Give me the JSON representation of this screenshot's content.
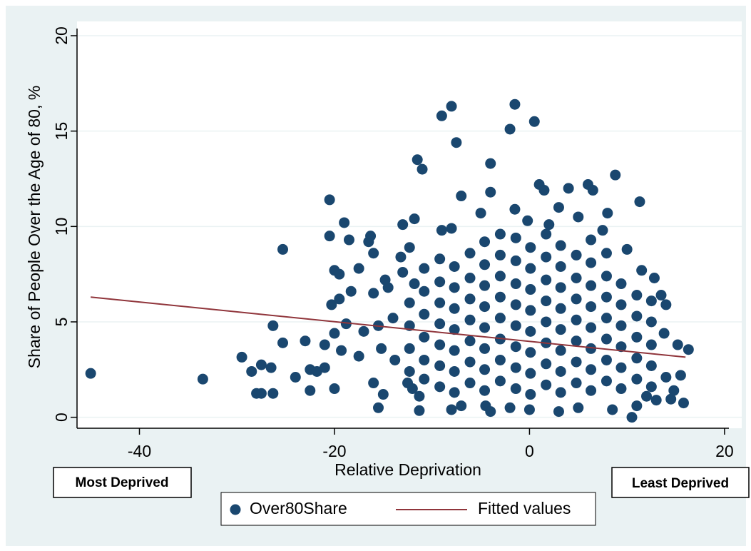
{
  "chart_data": {
    "type": "scatter",
    "x_label": "Relative Deprivation",
    "y_label": "Share of People Over the Age of 80, %",
    "annotations": [
      "Most Deprived",
      "Least Deprived"
    ],
    "xlim": [
      -46.4,
      20.3
    ],
    "xticks": [
      -40,
      -20,
      0,
      20
    ],
    "ylim": [
      -0.5,
      20
    ],
    "yticks": [
      0,
      5,
      10,
      15,
      20
    ],
    "grid": true,
    "legend": "bottom",
    "series": [
      {
        "name": "Over80Share",
        "color": "#1a476f",
        "type": "scatter",
        "x": [
          -45,
          -33.5,
          -29.5,
          -28.5,
          -28,
          -27.5,
          -27.5,
          -26.5,
          -26.3,
          -26.3,
          -25.3,
          -25.3,
          -24,
          -23,
          -22.5,
          -22.5,
          -21.8,
          -21,
          -21,
          -20.5,
          -20.5,
          -20.3,
          -20,
          -20,
          -20,
          -19.5,
          -19.5,
          -19.3,
          -19,
          -18.8,
          -18.5,
          -18.3,
          -17.5,
          -17.5,
          -17,
          -16.5,
          -16.3,
          -16,
          -16,
          -15.5,
          -15.2,
          -14.8,
          -14.5,
          -14,
          -13.8,
          -13.2,
          -13,
          -13,
          -12.5,
          -12.3,
          -11.8,
          -11.8,
          -11.3,
          -11.5,
          -11,
          -12,
          -11.3,
          -15.5,
          -15,
          -16,
          -8,
          -7,
          -4.5,
          -4,
          -2,
          0,
          3,
          5,
          8.5,
          10.5,
          11,
          13,
          14.5,
          15.8,
          -9,
          -8,
          -7.5,
          -1.5,
          -2,
          0.5,
          -4,
          -4,
          -7,
          8.8,
          1,
          1.5,
          3,
          4,
          6,
          6.5,
          11.3,
          -9,
          -8,
          -5,
          -3,
          -1.5,
          -0.2,
          2,
          5,
          8,
          7.5,
          10,
          11.5,
          12.8,
          13.5,
          14,
          13.8,
          15.2,
          16.3,
          15.5,
          14.8,
          14,
          12,
          -12.3,
          -12.3,
          -12.3,
          -12.3,
          -10.8,
          -10.8,
          -10.8,
          -10.8,
          -10.8,
          -10.8,
          -9.2,
          -9.2,
          -9.2,
          -9.2,
          -9.2,
          -9.2,
          -9.2,
          -7.7,
          -7.7,
          -7.7,
          -7.7,
          -7.7,
          -7.7,
          -7.7,
          -6.1,
          -6.1,
          -6.1,
          -6.1,
          -6.1,
          -6.1,
          -6.1,
          -4.6,
          -4.6,
          -4.6,
          -4.6,
          -4.6,
          -4.6,
          -4.6,
          -4.6,
          -3,
          -3,
          -3,
          -3,
          -3,
          -3,
          -3,
          -1.4,
          -1.4,
          -1.4,
          -1.4,
          -1.4,
          -1.4,
          -1.4,
          -1.4,
          0.1,
          0.1,
          0.1,
          0.1,
          0.1,
          0.1,
          0.1,
          0.1,
          1.7,
          1.7,
          1.7,
          1.7,
          1.7,
          1.7,
          1.7,
          1.7,
          3.2,
          3.2,
          3.2,
          3.2,
          3.2,
          3.2,
          3.2,
          3.2,
          4.8,
          4.8,
          4.8,
          4.8,
          4.8,
          4.8,
          4.8,
          6.3,
          6.3,
          6.3,
          6.3,
          6.3,
          6.3,
          6.3,
          6.3,
          7.9,
          7.9,
          7.9,
          7.9,
          7.9,
          7.9,
          7.9,
          9.4,
          9.4,
          9.4,
          9.4,
          9.4,
          9.4,
          11,
          11,
          11,
          11,
          11,
          12.5,
          12.5,
          12.5,
          12.5,
          12.5
        ],
        "values": [
          2.3,
          2.0,
          3.15,
          2.4,
          1.25,
          1.25,
          2.75,
          2.6,
          4.8,
          1.25,
          8.8,
          3.9,
          2.1,
          4.0,
          2.5,
          1.4,
          2.4,
          2.6,
          3.8,
          11.4,
          9.5,
          5.9,
          7.7,
          4.4,
          1.5,
          7.5,
          6.2,
          3.5,
          10.2,
          4.9,
          9.3,
          6.6,
          3.2,
          7.8,
          4.5,
          9.2,
          9.5,
          8.6,
          6.5,
          4.8,
          3.6,
          7.2,
          6.8,
          5.2,
          3.0,
          8.4,
          10.1,
          7.6,
          1.8,
          8.9,
          10.4,
          7.0,
          0.35,
          13.5,
          13.0,
          1.5,
          1.1,
          0.5,
          1.2,
          1.8,
          0.4,
          0.6,
          0.6,
          0.3,
          0.5,
          0.4,
          0.3,
          0.5,
          0.4,
          0.0,
          0.6,
          0.9,
          0.95,
          0.75,
          15.8,
          16.3,
          14.4,
          16.4,
          15.1,
          15.5,
          13.3,
          11.8,
          11.6,
          12.7,
          12.2,
          11.9,
          11.0,
          12.0,
          12.2,
          11.9,
          11.3,
          9.8,
          9.9,
          10.7,
          9.6,
          10.9,
          10.3,
          10.1,
          10.5,
          10.7,
          9.8,
          8.8,
          7.7,
          7.3,
          6.4,
          5.9,
          4.4,
          3.8,
          3.55,
          2.2,
          1.4,
          2.1,
          1.1,
          2.4,
          3.6,
          4.8,
          6.0,
          2.0,
          3.0,
          4.2,
          5.4,
          6.6,
          7.8,
          1.6,
          2.7,
          3.8,
          4.9,
          6.0,
          7.1,
          8.3,
          1.3,
          2.4,
          3.5,
          4.6,
          5.7,
          6.8,
          7.9,
          1.8,
          2.9,
          4.0,
          5.1,
          6.2,
          7.3,
          8.6,
          1.4,
          2.5,
          3.6,
          4.7,
          5.8,
          6.9,
          8.0,
          9.2,
          1.9,
          3.0,
          4.1,
          5.2,
          6.3,
          7.4,
          8.5,
          1.5,
          2.6,
          3.7,
          4.8,
          5.9,
          7.0,
          8.2,
          9.4,
          1.2,
          2.3,
          3.4,
          4.5,
          5.6,
          6.7,
          7.8,
          8.9,
          1.7,
          2.8,
          3.9,
          5.0,
          6.1,
          7.2,
          8.4,
          9.6,
          1.3,
          2.4,
          3.5,
          4.6,
          5.7,
          6.8,
          7.9,
          9.0,
          1.8,
          2.9,
          4.0,
          5.1,
          6.2,
          7.3,
          8.5,
          1.4,
          2.5,
          3.6,
          4.7,
          5.8,
          6.9,
          8.1,
          9.3,
          1.9,
          3.0,
          4.1,
          5.2,
          6.3,
          7.4,
          8.6,
          1.5,
          2.6,
          3.7,
          4.8,
          5.9,
          7.0,
          2.0,
          3.1,
          4.2,
          5.3,
          6.4,
          1.6,
          2.7,
          3.8,
          5.0,
          6.1
        ]
      },
      {
        "name": "Fitted values",
        "color": "#90353b",
        "type": "line",
        "x": [
          -45,
          16
        ],
        "values": [
          6.3,
          3.15
        ]
      }
    ]
  }
}
